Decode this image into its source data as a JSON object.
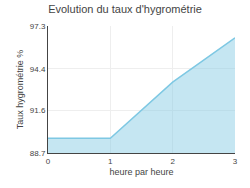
{
  "chart_data": {
    "type": "area",
    "title": "Evolution du taux d'hygrométrie",
    "xlabel": "heure par heure",
    "ylabel": "Taux hygrométrie %",
    "x": [
      0,
      1,
      2,
      3
    ],
    "series": [
      {
        "values": [
          89.7,
          89.7,
          93.5,
          96.5
        ],
        "color": "#7ec8e3"
      }
    ],
    "xlim": [
      0,
      3
    ],
    "xticks": [
      0,
      1,
      2,
      3
    ],
    "ylim": [
      88.7,
      97.3
    ],
    "yticks": [
      88.7,
      91.6,
      94.4,
      97.3
    ],
    "grid": true
  }
}
